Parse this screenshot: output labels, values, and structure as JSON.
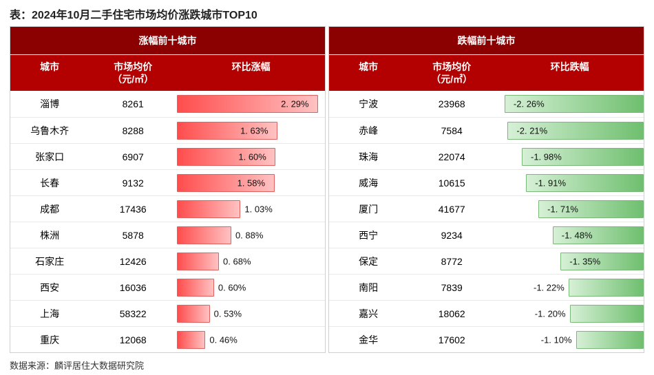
{
  "title": "表：2024年10月二手住宅市场均价涨跌城市TOP10",
  "source": "数据来源：麟评居住大数据研究院",
  "max_abs": 2.4,
  "colors": {
    "header_bg_super": "#8b0000",
    "header_bg": "#b30000",
    "header_text": "#ffffff",
    "up_bar_from": "#ff4d4d",
    "up_bar_to": "#ffc2c2",
    "down_bar_from": "#6fbf6f",
    "down_bar_to": "#d6f0d6",
    "grid": "#e9e9e9"
  },
  "left": {
    "super": "涨幅前十城市",
    "headers": {
      "city": "城市",
      "price": "市场均价\n（元/㎡）",
      "change": "环比涨幅"
    },
    "rows": [
      {
        "city": "淄博",
        "price": "8261",
        "change": 2.29
      },
      {
        "city": "乌鲁木齐",
        "price": "8288",
        "change": 1.63
      },
      {
        "city": "张家口",
        "price": "6907",
        "change": 1.6
      },
      {
        "city": "长春",
        "price": "9132",
        "change": 1.58
      },
      {
        "city": "成都",
        "price": "17436",
        "change": 1.03
      },
      {
        "city": "株洲",
        "price": "5878",
        "change": 0.88
      },
      {
        "city": "石家庄",
        "price": "12426",
        "change": 0.68
      },
      {
        "city": "西安",
        "price": "16036",
        "change": 0.6
      },
      {
        "city": "上海",
        "price": "58322",
        "change": 0.53
      },
      {
        "city": "重庆",
        "price": "12068",
        "change": 0.46
      }
    ]
  },
  "right": {
    "super": "跌幅前十城市",
    "headers": {
      "city": "城市",
      "price": "市场均价\n（元/㎡）",
      "change": "环比跌幅"
    },
    "rows": [
      {
        "city": "宁波",
        "price": "23968",
        "change": -2.26
      },
      {
        "city": "赤峰",
        "price": "7584",
        "change": -2.21
      },
      {
        "city": "珠海",
        "price": "22074",
        "change": -1.98
      },
      {
        "city": "威海",
        "price": "10615",
        "change": -1.91
      },
      {
        "city": "厦门",
        "price": "41677",
        "change": -1.71
      },
      {
        "city": "西宁",
        "price": "9234",
        "change": -1.48
      },
      {
        "city": "保定",
        "price": "8772",
        "change": -1.35
      },
      {
        "city": "南阳",
        "price": "7839",
        "change": -1.22
      },
      {
        "city": "嘉兴",
        "price": "18062",
        "change": -1.2
      },
      {
        "city": "金华",
        "price": "17602",
        "change": -1.1
      }
    ]
  }
}
